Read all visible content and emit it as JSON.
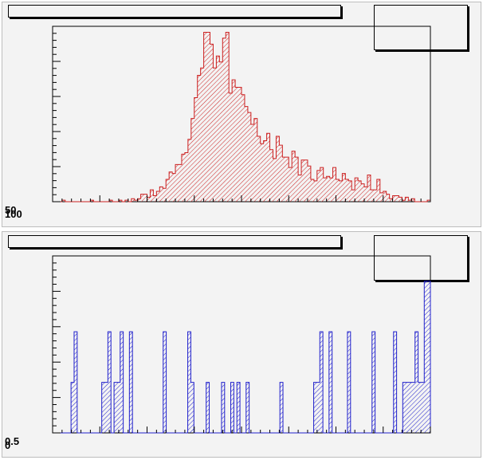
{
  "chart_data": [
    {
      "type": "bar",
      "style": "histogram",
      "title": "",
      "xlabel": "",
      "ylabel": "",
      "line_color": "#cc2020",
      "hatch": "diagonal",
      "grid": false,
      "y_axis_overlapping_labels": [
        "50",
        "100"
      ],
      "values": [
        0,
        0,
        0,
        1,
        0,
        0,
        0,
        0,
        0,
        0,
        0,
        0,
        1,
        0,
        0,
        0,
        0,
        0,
        1,
        0,
        0,
        1,
        0,
        1,
        0,
        2,
        1,
        2,
        5,
        5,
        3,
        8,
        4,
        7,
        10,
        9,
        15,
        20,
        19,
        25,
        25,
        32,
        33,
        42,
        56,
        70,
        85,
        90,
        114,
        114,
        106,
        90,
        98,
        94,
        110,
        114,
        73,
        82,
        77,
        77,
        72,
        64,
        60,
        52,
        56,
        44,
        39,
        41,
        46,
        35,
        29,
        44,
        38,
        30,
        30,
        23,
        34,
        30,
        18,
        28,
        28,
        24,
        15,
        14,
        21,
        23,
        16,
        17,
        16,
        23,
        15,
        14,
        19,
        15,
        14,
        8,
        16,
        14,
        12,
        10,
        18,
        8,
        8,
        15,
        6,
        7,
        5,
        2,
        4,
        4,
        3,
        1,
        3,
        1,
        2,
        0,
        0,
        0,
        0,
        1
      ],
      "y_max": 118
    },
    {
      "type": "bar",
      "style": "histogram",
      "title": "",
      "xlabel": "",
      "ylabel": "",
      "line_color": "#2020cc",
      "hatch": "diagonal",
      "grid": false,
      "y_axis_overlapping_labels": [
        "0.5",
        "0"
      ],
      "values": [
        0,
        0,
        0,
        0,
        0,
        0,
        1,
        2,
        0,
        0,
        0,
        0,
        0,
        0,
        0,
        0,
        1,
        1,
        2,
        0,
        1,
        1,
        2,
        0,
        0,
        2,
        0,
        0,
        0,
        0,
        0,
        0,
        0,
        0,
        0,
        0,
        2,
        0,
        0,
        0,
        0,
        0,
        0,
        0,
        2,
        1,
        0,
        0,
        0,
        0,
        1,
        0,
        0,
        0,
        0,
        1,
        0,
        0,
        1,
        0,
        1,
        0,
        0,
        1,
        0,
        0,
        0,
        0,
        0,
        0,
        0,
        0,
        0,
        0,
        1,
        0,
        0,
        0,
        0,
        0,
        0,
        0,
        0,
        0,
        0,
        1,
        1,
        2,
        0,
        0,
        2,
        0,
        0,
        0,
        0,
        0,
        2,
        0,
        0,
        0,
        0,
        0,
        0,
        0,
        2,
        0,
        0,
        0,
        0,
        0,
        0,
        2,
        0,
        0,
        1,
        1,
        1,
        1,
        2,
        1,
        1,
        3,
        3
      ],
      "y_max": 3.5
    }
  ]
}
